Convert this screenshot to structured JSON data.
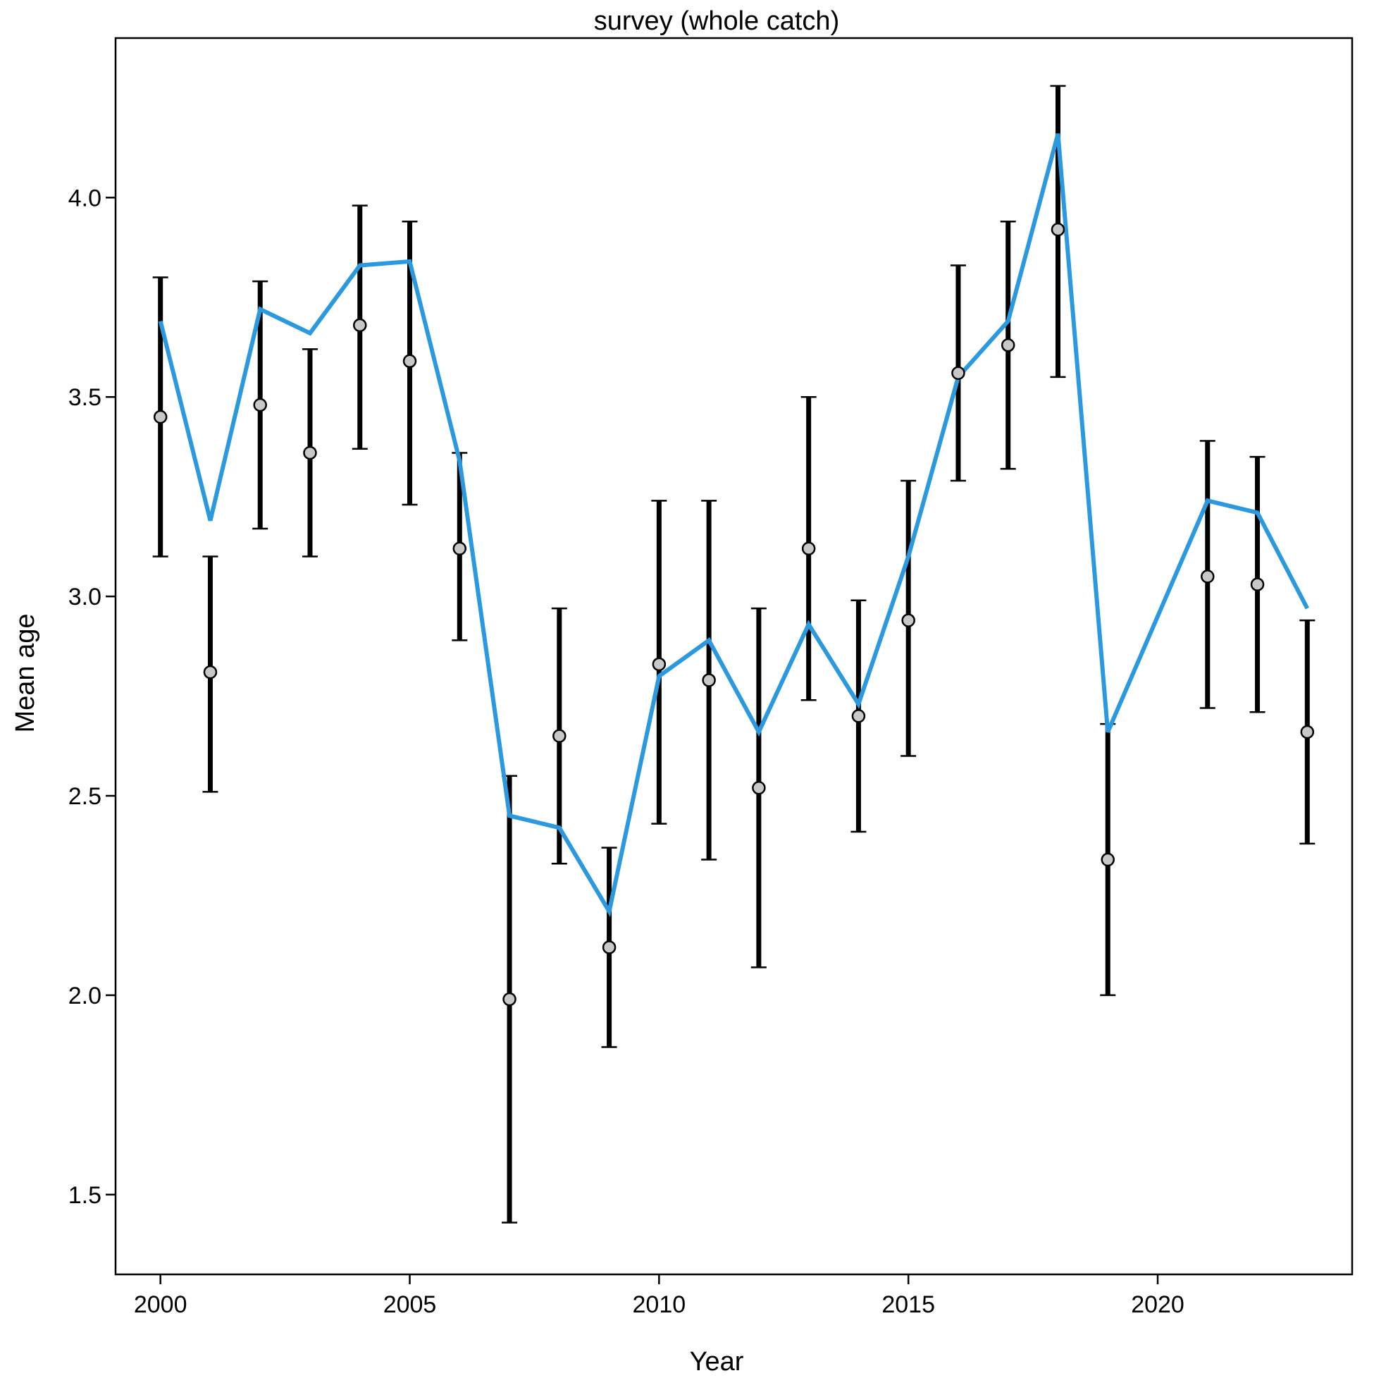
{
  "chart_data": {
    "type": "line",
    "title": "survey (whole catch)",
    "xlabel": "Year",
    "ylabel": "Mean age",
    "xlim": [
      1999.1,
      2023.9
    ],
    "ylim": [
      1.3,
      4.4
    ],
    "x_ticks": [
      2000,
      2005,
      2010,
      2015,
      2020
    ],
    "y_ticks": [
      1.5,
      2.0,
      2.5,
      3.0,
      3.5,
      4.0
    ],
    "x_tick_labels": [
      "2000",
      "2005",
      "2010",
      "2015",
      "2020"
    ],
    "y_tick_labels": [
      "1.5",
      "2.0",
      "2.5",
      "3.0",
      "3.5",
      "4.0"
    ],
    "grid": false,
    "series": [
      {
        "kind": "observed_with_interval",
        "color": "#000000",
        "marker_fill": "#c8c8c8",
        "points": [
          {
            "x": 2000,
            "y": 3.45,
            "low": 3.1,
            "high": 3.8
          },
          {
            "x": 2001,
            "y": 2.81,
            "low": 2.51,
            "high": 3.1
          },
          {
            "x": 2002,
            "y": 3.48,
            "low": 3.17,
            "high": 3.79
          },
          {
            "x": 2003,
            "y": 3.36,
            "low": 3.1,
            "high": 3.62
          },
          {
            "x": 2004,
            "y": 3.68,
            "low": 3.37,
            "high": 3.98
          },
          {
            "x": 2005,
            "y": 3.59,
            "low": 3.23,
            "high": 3.94
          },
          {
            "x": 2006,
            "y": 3.12,
            "low": 2.89,
            "high": 3.36
          },
          {
            "x": 2007,
            "y": 1.99,
            "low": 1.43,
            "high": 2.55
          },
          {
            "x": 2008,
            "y": 2.65,
            "low": 2.33,
            "high": 2.97
          },
          {
            "x": 2009,
            "y": 2.12,
            "low": 1.87,
            "high": 2.37
          },
          {
            "x": 2010,
            "y": 2.83,
            "low": 2.43,
            "high": 3.24
          },
          {
            "x": 2011,
            "y": 2.79,
            "low": 2.34,
            "high": 3.24
          },
          {
            "x": 2012,
            "y": 2.52,
            "low": 2.07,
            "high": 2.97
          },
          {
            "x": 2013,
            "y": 3.12,
            "low": 2.74,
            "high": 3.5
          },
          {
            "x": 2014,
            "y": 2.7,
            "low": 2.41,
            "high": 2.99
          },
          {
            "x": 2015,
            "y": 2.94,
            "low": 2.6,
            "high": 3.29
          },
          {
            "x": 2016,
            "y": 3.56,
            "low": 3.29,
            "high": 3.83
          },
          {
            "x": 2017,
            "y": 3.63,
            "low": 3.32,
            "high": 3.94
          },
          {
            "x": 2018,
            "y": 3.92,
            "low": 3.55,
            "high": 4.28
          },
          {
            "x": 2019,
            "y": 2.34,
            "low": 2.0,
            "high": 2.68
          },
          {
            "x": 2021,
            "y": 3.05,
            "low": 2.72,
            "high": 3.39
          },
          {
            "x": 2022,
            "y": 3.03,
            "low": 2.71,
            "high": 3.35
          },
          {
            "x": 2023,
            "y": 2.66,
            "low": 2.38,
            "high": 2.94
          }
        ]
      },
      {
        "kind": "expected_line",
        "color": "#2b99e0",
        "x": [
          2000,
          2001,
          2002,
          2003,
          2004,
          2005,
          2006,
          2007,
          2008,
          2009,
          2010,
          2011,
          2012,
          2013,
          2014,
          2015,
          2016,
          2017,
          2018,
          2019,
          2021,
          2022,
          2023
        ],
        "y": [
          3.69,
          3.19,
          3.72,
          3.66,
          3.83,
          3.84,
          3.34,
          2.45,
          2.42,
          2.21,
          2.8,
          2.89,
          2.66,
          2.93,
          2.73,
          3.1,
          3.55,
          3.69,
          4.16,
          2.66,
          3.24,
          3.21,
          2.97
        ]
      }
    ]
  }
}
